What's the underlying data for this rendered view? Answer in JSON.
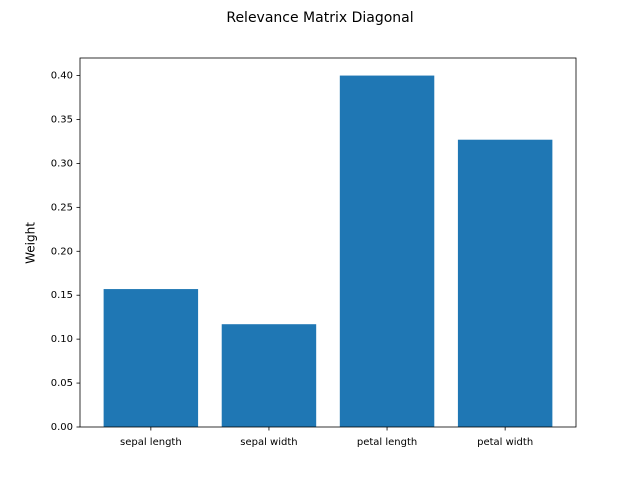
{
  "chart_data": {
    "type": "bar",
    "title": "Relevance Matrix Diagonal",
    "y_label": "Weight",
    "categories": [
      "sepal length",
      "sepal width",
      "petal length",
      "petal width"
    ],
    "values": [
      0.157,
      0.117,
      0.4,
      0.327
    ],
    "color": "#1f77b4",
    "ylim": [
      0,
      0.42
    ],
    "yticks": [
      {
        "value": 0,
        "label": "0.00"
      },
      {
        "value": 0.05,
        "label": "0.05"
      },
      {
        "value": 0.1,
        "label": "0.10"
      },
      {
        "value": 0.15,
        "label": "0.15"
      },
      {
        "value": 0.2,
        "label": "0.20"
      },
      {
        "value": 0.25,
        "label": "0.25"
      },
      {
        "value": 0.3,
        "label": "0.30"
      },
      {
        "value": 0.35,
        "label": "0.35"
      },
      {
        "value": 0.4,
        "label": "0.40"
      }
    ],
    "grid": false
  }
}
